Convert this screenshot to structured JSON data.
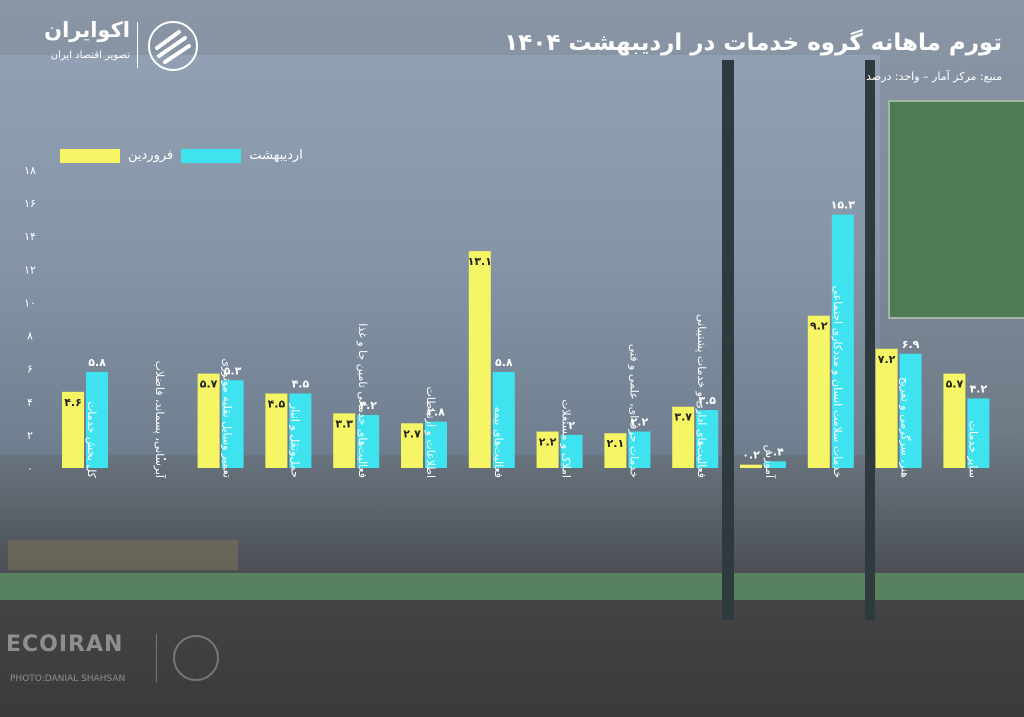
{
  "header": {
    "title": "تورم ماهانه گروه خدمات در اردیبهشت ۱۴۰۴",
    "source_unit": "منبع: مرکز آمار – واحد: درصد"
  },
  "brand": {
    "name": "اکوایران",
    "tagline": "تصویر اقتصاد ایران",
    "watermark_text": "ECOIRAN",
    "photo_credit": "PHOTO:DANIAL SHAHSAN"
  },
  "legend": [
    {
      "label": "فروردین",
      "color": "#f5f565"
    },
    {
      "label": "اردیبهشت",
      "color": "#3fe3f0"
    }
  ],
  "chart_data": {
    "type": "bar",
    "title": "تورم ماهانه گروه خدمات در اردیبهشت ۱۴۰۴",
    "ylabel": "",
    "ylim": [
      0,
      18
    ],
    "yticks": [
      0,
      2,
      4,
      6,
      8,
      10,
      12,
      14,
      16,
      18
    ],
    "ytick_labels": [
      "۰",
      "۲",
      "۴",
      "۶",
      "۸",
      "۱۰",
      "۱۲",
      "۱۴",
      "۱۶",
      "۱۸"
    ],
    "grid": false,
    "legend_position": "top-left",
    "categories": [
      "کل بخش خدمات",
      "آبرسانی، پسماند، فاضلاب",
      "تعمیر وسایل نقلیه موتوری",
      "حمل‌ونقل و انبار",
      "فعالیت‌های خدماتی تامین جا و غذا",
      "اطلاعات و ارتباطات",
      "فعالیت‌های بیمه",
      "املاک و مستغلات",
      "خدمات حرفه‌ای، علمی و فنی",
      "فعالیت‌های اداری و خدمات پشتیبانی",
      "آموزش",
      "خدمات سلامت انسان و مددکاری اجتماعی",
      "هنر، سرگرمی و تفریح",
      "سایر خدمات"
    ],
    "series": [
      {
        "name": "فروردین",
        "color": "#f5f565",
        "values": [
          4.6,
          null,
          5.7,
          4.5,
          3.3,
          2.7,
          13.1,
          2.2,
          2.1,
          3.7,
          0.2,
          9.2,
          7.2,
          5.7
        ],
        "labels": [
          "۴.۶",
          "",
          "۵.۷",
          "۴.۵",
          "۳.۳",
          "۲.۷",
          "۱۳.۱",
          "۲.۲",
          "۲.۱",
          "۳.۷",
          "۰.۲",
          "۹.۲",
          "۷.۲",
          "۵.۷"
        ]
      },
      {
        "name": "اردیبهشت",
        "color": "#3fe3f0",
        "values": [
          5.8,
          null,
          5.3,
          4.5,
          3.2,
          2.8,
          5.8,
          2.0,
          2.2,
          3.5,
          0.4,
          15.3,
          6.9,
          4.2
        ],
        "labels": [
          "۵.۸",
          "۰",
          "۵.۳",
          "۴.۵",
          "۳.۲",
          "۲.۸",
          "۵.۸",
          "۲",
          "۲.۲",
          "۳.۵",
          "۰.۴",
          "۱۵.۳",
          "۶.۹",
          "۴.۲"
        ]
      }
    ]
  }
}
